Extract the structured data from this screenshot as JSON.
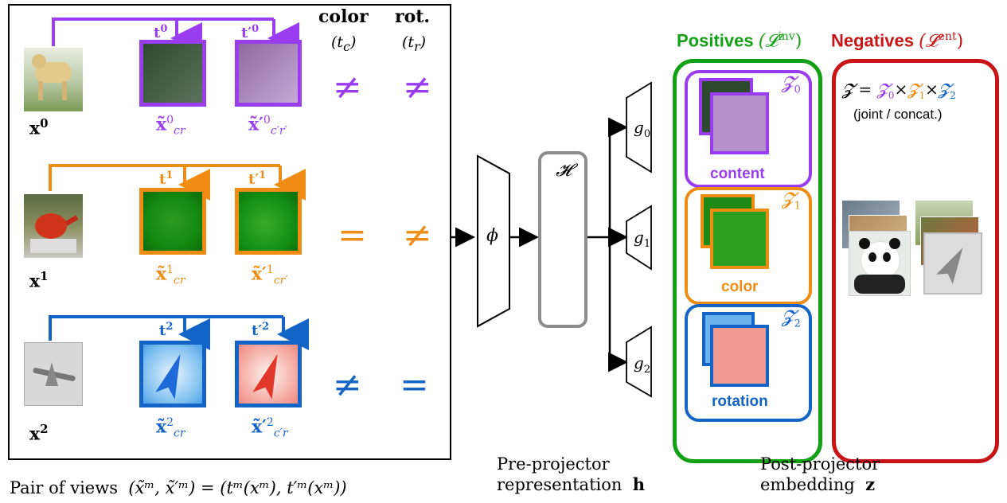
{
  "colors": {
    "purple": "#9a3df0",
    "orange": "#f08c14",
    "blue": "#1464c8",
    "green": "#14a014",
    "red": "#c81414",
    "gray": "#8c8c8c"
  },
  "headers": {
    "color": "color",
    "color_sub": "(t",
    "color_sub_idx": "c",
    "rot": "rot.",
    "rot_sub": "(t",
    "rot_sub_idx": "r"
  },
  "rows": [
    {
      "input_label": "x",
      "input_idx": "0",
      "t_label": "t",
      "t_idx": "0",
      "tp_label": "t′",
      "tp_idx": "0",
      "view1_label": "x̃",
      "view1_sup": "0",
      "view1_sub": "cr",
      "view2_label": "x̃′",
      "view2_sup": "0",
      "view2_sub": "c′r′",
      "color_rel": "≠",
      "rot_rel": "≠"
    },
    {
      "input_label": "x",
      "input_idx": "1",
      "t_label": "t",
      "t_idx": "1",
      "tp_label": "t′",
      "tp_idx": "1",
      "view1_label": "x̃",
      "view1_sup": "1",
      "view1_sub": "cr",
      "view2_label": "x̃′",
      "view2_sup": "1",
      "view2_sub": "cr′",
      "color_rel": "=",
      "rot_rel": "≠"
    },
    {
      "input_label": "x",
      "input_idx": "2",
      "t_label": "t",
      "t_idx": "2",
      "tp_label": "t′",
      "tp_idx": "2",
      "view1_label": "x̃",
      "view1_sup": "2",
      "view1_sub": "cr",
      "view2_label": "x̃′",
      "view2_sup": "2",
      "view2_sub": "c′r",
      "color_rel": "≠",
      "rot_rel": "="
    }
  ],
  "network": {
    "encoder": "ϕ",
    "rep_space": "𝓗",
    "projectors": [
      "g",
      "g",
      "g"
    ],
    "projector_idx": [
      "0",
      "1",
      "2"
    ]
  },
  "positives": {
    "title": "Positives",
    "loss": "(𝓛",
    "loss_sup": "inv",
    "loss_close": ")",
    "spaces": [
      {
        "sym": "𝓩",
        "idx": "0",
        "label": "content"
      },
      {
        "sym": "𝓩",
        "idx": "1",
        "label": "color"
      },
      {
        "sym": "𝓩",
        "idx": "2",
        "label": "rotation"
      }
    ]
  },
  "negatives": {
    "title": "Negatives",
    "loss": "(𝓛",
    "loss_sup": "ent",
    "loss_close": ")",
    "formula_lhs": "𝓩 =",
    "formula_z0": "𝓩",
    "formula_z0_idx": "0",
    "formula_z1": "𝓩",
    "formula_z1_idx": "1",
    "formula_z2": "𝓩",
    "formula_z2_idx": "2",
    "times": "×",
    "note": "(joint / concat.)"
  },
  "captions": {
    "pairs_prefix": "Pair of views",
    "pairs_formula": "(x̃ᵐ, x̃′ᵐ) = (tᵐ(xᵐ), t′ᵐ(xᵐ))",
    "pre_line1": "Pre-projector",
    "pre_line2": "representation",
    "pre_sym": "h",
    "post_line1": "Post-projector",
    "post_line2": "embedding",
    "post_sym": "z"
  }
}
